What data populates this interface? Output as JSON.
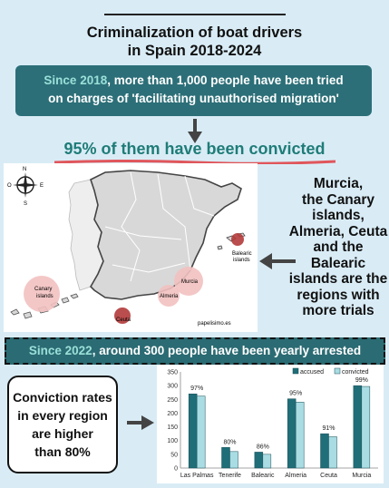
{
  "title_lines": [
    "Criminalization of boat drivers",
    "in Spain 2018-2024"
  ],
  "box1": {
    "highlight": "Since 2018",
    "text_a": ", more than 1,000 people have been tried",
    "text_b": "on charges of 'facilitating unauthorised migration'"
  },
  "convicted_line": "95% of them have been convicted",
  "map": {
    "labels": {
      "canary": "Canary islands",
      "murcia": "Murcia",
      "almeria": "Almeria",
      "ceuta": "Ceuta",
      "balearic": "Balearic islands",
      "credit": "papelisimo.es"
    },
    "compass": {
      "n": "N",
      "s": "S",
      "e": "E",
      "o": "O"
    }
  },
  "side_text": [
    "Murcia,",
    "the Canary",
    "islands,",
    "Almeria, Ceuta",
    "and the",
    "Balearic",
    "islands are the",
    "regions with",
    "more trials"
  ],
  "box2": {
    "highlight": "Since 2022",
    "text": ", around 300 people have been yearly arrested"
  },
  "box3_lines": [
    "Conviction rates",
    "in every region",
    "are higher",
    "than 80%"
  ],
  "colors": {
    "accused": "#1f6e78",
    "convicted": "#a9dce3",
    "bubble_light": "#f2c1c0",
    "bubble_dark": "#b23a3a"
  },
  "chart_data": {
    "type": "bar",
    "categories": [
      "Las Palmas",
      "Tenerife",
      "Balearic",
      "Almeria",
      "Ceuta",
      "Murcia"
    ],
    "series": [
      {
        "name": "accused",
        "values": [
          270,
          75,
          58,
          252,
          125,
          300
        ]
      },
      {
        "name": "convicted",
        "values": [
          262,
          60,
          50,
          240,
          114,
          297
        ]
      }
    ],
    "annotations": [
      "97%",
      "80%",
      "86%",
      "95%",
      "91%",
      "99%"
    ],
    "ylim": [
      0,
      350
    ],
    "yticks": [
      0,
      50,
      100,
      150,
      200,
      250,
      300,
      350
    ],
    "legend": "top-right",
    "grid": false
  }
}
